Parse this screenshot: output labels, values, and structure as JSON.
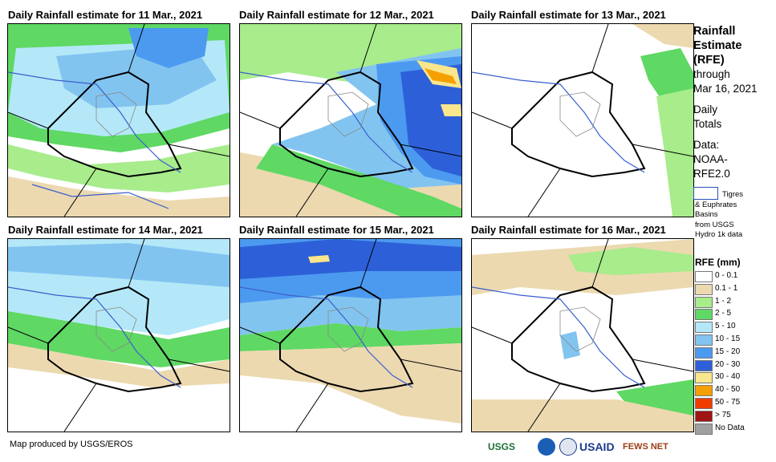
{
  "panels": [
    {
      "title": "Daily Rainfall estimate for 11 Mar., 2021"
    },
    {
      "title": "Daily Rainfall estimate for 12 Mar., 2021"
    },
    {
      "title": "Daily Rainfall estimate for 13 Mar., 2021"
    },
    {
      "title": "Daily Rainfall estimate for 14 Mar., 2021"
    },
    {
      "title": "Daily Rainfall estimate for 15 Mar., 2021"
    },
    {
      "title": "Daily Rainfall estimate for 16 Mar., 2021"
    }
  ],
  "side": {
    "heading_1": "Rainfall",
    "heading_2": "Estimate",
    "heading_3": "(RFE)",
    "through": "through",
    "date": "Mar 16, 2021",
    "daily_1": "Daily",
    "daily_2": "Totals",
    "data_1": "Data:",
    "data_2": "NOAA-",
    "data_3": "RFE2.0",
    "basin_1": "Tigres",
    "basin_2": "& Euphrates",
    "basin_3": "Basins",
    "basin_4": "from USGS",
    "basin_5": "Hydro 1k data"
  },
  "legend": {
    "title": "RFE (mm)",
    "items": [
      {
        "label": "0 - 0.1",
        "color": "#ffffff"
      },
      {
        "label": "0.1 - 1",
        "color": "#ecd9b0"
      },
      {
        "label": "1 - 2",
        "color": "#a8ec8c"
      },
      {
        "label": "2 - 5",
        "color": "#5fd864"
      },
      {
        "label": "5 - 10",
        "color": "#b4e8f8"
      },
      {
        "label": "10 - 15",
        "color": "#82c4f0"
      },
      {
        "label": "15 - 20",
        "color": "#4c9af0"
      },
      {
        "label": "20 - 30",
        "color": "#2d60d8"
      },
      {
        "label": "30 - 40",
        "color": "#fae68c"
      },
      {
        "label": "40 - 50",
        "color": "#f5a000"
      },
      {
        "label": "50 - 75",
        "color": "#f03c00"
      },
      {
        "label": "> 75",
        "color": "#a01414"
      },
      {
        "label": "No Data",
        "color": "#a0a0a0"
      }
    ]
  },
  "credit": "Map produced by USGS/EROS",
  "logos": {
    "usgs": "USGS",
    "usaid": "USAID",
    "fewsnet": "FEWS NET"
  }
}
